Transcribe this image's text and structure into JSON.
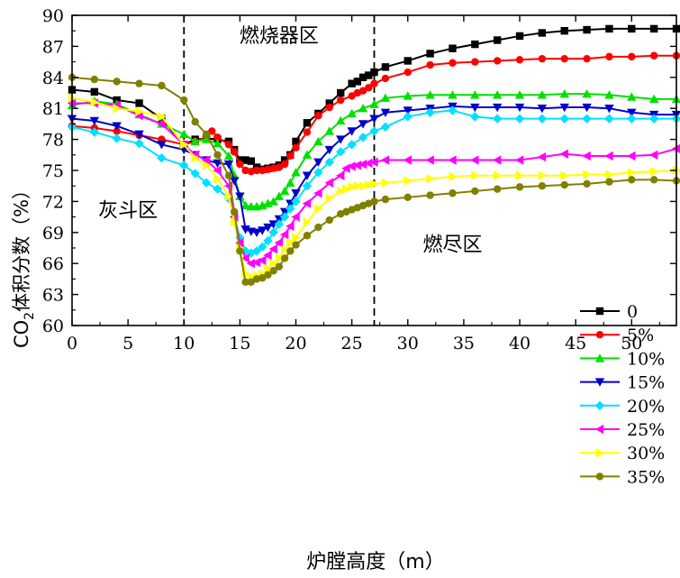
{
  "chart_data": {
    "type": "line",
    "ylabel_prefix": "CO",
    "ylabel_sub": "2",
    "ylabel_suffix": "体积分数（%）",
    "xlabel": "炉膛高度（m）",
    "xlim": [
      0,
      54
    ],
    "ylim": [
      60,
      90
    ],
    "xticks": [
      0,
      5,
      10,
      15,
      20,
      25,
      30,
      35,
      40,
      45,
      50
    ],
    "yticks": [
      60,
      63,
      66,
      69,
      72,
      75,
      78,
      81,
      84,
      87,
      90
    ],
    "dividers": [
      10,
      27
    ],
    "regions": [
      {
        "label": "灰斗区",
        "x": 5,
        "y": 70.5
      },
      {
        "label": "燃烧器区",
        "x": 18.5,
        "y": 87.4
      },
      {
        "label": "燃尽区",
        "x": 34,
        "y": 67.2
      }
    ],
    "legend_position": "right-middle",
    "series": [
      {
        "name": "0",
        "color": "#000000",
        "marker": "square",
        "x": [
          0,
          2,
          4,
          6,
          8,
          10,
          11,
          12,
          13,
          14,
          14.5,
          15,
          15.5,
          16,
          16.5,
          17,
          17.5,
          18,
          18.5,
          19,
          19.5,
          20,
          21,
          22,
          23,
          24,
          25,
          25.5,
          26,
          26.5,
          27,
          28,
          30,
          32,
          34,
          36,
          38,
          40,
          42,
          44,
          46,
          48,
          50,
          52,
          54
        ],
        "y": [
          82.8,
          82.6,
          81.8,
          81.5,
          80,
          77.5,
          78,
          78.1,
          78,
          77.8,
          77,
          76,
          76,
          75.9,
          75.3,
          75.1,
          75.2,
          75.3,
          75.5,
          76,
          76.5,
          77.8,
          79.6,
          80.5,
          81.5,
          82.5,
          83.4,
          83.6,
          84,
          84.2,
          84.5,
          85,
          85.6,
          86.3,
          86.8,
          87.2,
          87.6,
          88,
          88.3,
          88.5,
          88.6,
          88.7,
          88.7,
          88.7,
          88.7
        ]
      },
      {
        "name": "5%",
        "color": "#ff0000",
        "marker": "circle",
        "x": [
          0,
          2,
          4,
          6,
          8,
          10,
          11,
          12,
          12.5,
          13,
          14,
          14.5,
          15,
          15.5,
          16,
          16.5,
          17,
          17.5,
          18,
          18.5,
          19,
          19.5,
          20,
          21,
          22,
          23,
          24,
          25,
          25.5,
          26,
          26.5,
          27,
          28,
          30,
          32,
          34,
          36,
          38,
          40,
          42,
          44,
          46,
          48,
          50,
          52,
          54
        ],
        "y": [
          79.3,
          79.1,
          78.8,
          78.4,
          78,
          77.5,
          77.8,
          78.2,
          78.8,
          78.2,
          77.5,
          76.8,
          75.6,
          75,
          74.9,
          75,
          75,
          75.1,
          75.2,
          75.3,
          75.6,
          76.4,
          77.2,
          78.7,
          80.3,
          81.1,
          81.8,
          82.2,
          82.5,
          82.7,
          83,
          83.4,
          83.9,
          84.5,
          85.2,
          85.4,
          85.5,
          85.6,
          85.7,
          85.8,
          85.8,
          85.8,
          86,
          86,
          86.1,
          86.1
        ]
      },
      {
        "name": "10%",
        "color": "#00e000",
        "marker": "triangle-up",
        "x": [
          0,
          2,
          4,
          6,
          8,
          10,
          11,
          12,
          13,
          14,
          14.5,
          15,
          15.5,
          16,
          16.5,
          17,
          17.5,
          18,
          18.5,
          19,
          19.5,
          20,
          21,
          22,
          23,
          24,
          25,
          26,
          27,
          28,
          30,
          32,
          34,
          36,
          38,
          40,
          42,
          44,
          46,
          48,
          50,
          52,
          54
        ],
        "y": [
          81.3,
          81.7,
          81.4,
          80.4,
          79.5,
          78.5,
          77.8,
          78,
          77.6,
          76.4,
          74.5,
          72.5,
          71.6,
          71.5,
          71.5,
          71.6,
          71.8,
          72,
          72.5,
          73,
          73.8,
          74.8,
          76.5,
          77.8,
          78.8,
          79.8,
          80.5,
          81,
          81.4,
          82,
          82.2,
          82.3,
          82.3,
          82.3,
          82.3,
          82.3,
          82.3,
          82.4,
          82.4,
          82.3,
          82.1,
          81.9,
          81.9
        ]
      },
      {
        "name": "15%",
        "color": "#0000cc",
        "marker": "triangle-down",
        "x": [
          0,
          2,
          4,
          6,
          8,
          10,
          11,
          12,
          13,
          14,
          14.5,
          15,
          15.5,
          16,
          16.5,
          17,
          17.5,
          18,
          18.5,
          19,
          19.5,
          20,
          21,
          22,
          23,
          24,
          25,
          26,
          27,
          28,
          30,
          32,
          34,
          36,
          38,
          40,
          42,
          44,
          46,
          48,
          50,
          52,
          54
        ],
        "y": [
          80,
          79.8,
          79.3,
          78.5,
          77.5,
          77,
          76.5,
          76,
          75.7,
          75.6,
          74,
          72.5,
          69.3,
          69.1,
          69,
          69.2,
          69.5,
          69.8,
          70.3,
          71,
          71.8,
          72.8,
          74.5,
          75.8,
          77,
          78,
          78.8,
          79.5,
          80,
          80.6,
          80.8,
          81,
          81.2,
          81.1,
          81.1,
          81.1,
          81,
          81.1,
          81.1,
          81,
          80.6,
          80.4,
          80.4
        ]
      },
      {
        "name": "20%",
        "color": "#00e0ff",
        "marker": "diamond",
        "x": [
          0,
          2,
          4,
          6,
          8,
          10,
          11,
          12,
          13,
          14,
          14.5,
          15,
          15.5,
          16,
          16.5,
          17,
          17.5,
          18,
          18.5,
          19,
          19.5,
          20,
          21,
          22,
          23,
          24,
          25,
          26,
          27,
          28,
          30,
          32,
          34,
          36,
          38,
          40,
          42,
          44,
          46,
          48,
          50,
          52,
          54
        ],
        "y": [
          79.2,
          78.7,
          78.1,
          77.6,
          76.2,
          75.5,
          74.7,
          73.8,
          73.2,
          72.3,
          70.5,
          68.5,
          67.2,
          67,
          67.2,
          67.6,
          68.2,
          69,
          69.8,
          70.5,
          71.3,
          72,
          73.5,
          74.8,
          75.8,
          76.8,
          77.5,
          78.2,
          78.8,
          79.2,
          80.2,
          80.6,
          80.8,
          80.2,
          80,
          80,
          80,
          80,
          80,
          80,
          80,
          80,
          80
        ]
      },
      {
        "name": "25%",
        "color": "#ff00ff",
        "marker": "triangle-left",
        "x": [
          0,
          2,
          4,
          6,
          8,
          10,
          11,
          12,
          13,
          14,
          14.5,
          15,
          15.5,
          16,
          16.5,
          17,
          17.5,
          18,
          18.5,
          19,
          19.5,
          20,
          21,
          22,
          23,
          24,
          24.5,
          25,
          25.5,
          26,
          26.5,
          27,
          28,
          30,
          32,
          34,
          36,
          38,
          40,
          42,
          44,
          46,
          48,
          50,
          52,
          54
        ],
        "y": [
          81.5,
          81.5,
          81.3,
          80.3,
          79.5,
          77.5,
          76.5,
          76,
          75,
          73.5,
          70.5,
          68,
          66.5,
          66,
          66.1,
          66.3,
          66.8,
          67.4,
          68,
          68.8,
          69.6,
          70.5,
          71.8,
          72.8,
          73.8,
          74.5,
          75.2,
          75.4,
          75.5,
          75.6,
          75.7,
          75.8,
          76,
          76,
          76,
          76,
          76,
          76,
          76,
          76.3,
          76.6,
          76.4,
          76.4,
          76.4,
          76.5,
          77.1
        ]
      },
      {
        "name": "30%",
        "color": "#ffff00",
        "marker": "triangle-right",
        "x": [
          0,
          2,
          4,
          6,
          8,
          10,
          11,
          12,
          13,
          14,
          14.5,
          15,
          15.5,
          16,
          16.5,
          17,
          17.5,
          18,
          18.5,
          19,
          19.5,
          20,
          21,
          22,
          23,
          24,
          24.5,
          25,
          25.5,
          26,
          26.5,
          27,
          28,
          30,
          32,
          34,
          36,
          38,
          40,
          42,
          44,
          46,
          48,
          50,
          52,
          54
        ],
        "y": [
          82,
          81.6,
          81,
          80.7,
          80.2,
          77.5,
          76.2,
          75.5,
          74.2,
          72.5,
          70,
          67.5,
          65,
          64.7,
          64.8,
          65,
          65.5,
          66,
          66.5,
          67.3,
          68,
          68.5,
          70,
          71.3,
          72.3,
          73,
          73.2,
          73.4,
          73.5,
          73.5,
          73.6,
          73.7,
          73.8,
          74,
          74.2,
          74.4,
          74.5,
          74.5,
          74.5,
          74.5,
          74.5,
          74.6,
          74.6,
          74.8,
          74.9,
          75
        ]
      },
      {
        "name": "35%",
        "color": "#808000",
        "marker": "circle",
        "x": [
          0,
          2,
          4,
          6,
          8,
          10,
          11,
          12,
          13,
          14,
          14.5,
          15,
          15.5,
          16,
          16.5,
          17,
          17.5,
          18,
          18.5,
          19,
          19.5,
          20,
          21,
          22,
          23,
          24,
          24.5,
          25,
          25.5,
          26,
          26.5,
          27,
          28,
          30,
          32,
          34,
          36,
          38,
          40,
          42,
          44,
          46,
          48,
          50,
          52,
          54
        ],
        "y": [
          84,
          83.8,
          83.6,
          83.4,
          83.2,
          81.8,
          79.7,
          78.5,
          76.5,
          74.5,
          71,
          67.2,
          64.2,
          64.2,
          64.5,
          64.6,
          64.9,
          65.3,
          65.7,
          66.5,
          67.2,
          67.8,
          68.7,
          69.5,
          70.2,
          70.8,
          71,
          71.2,
          71.4,
          71.6,
          71.8,
          72,
          72.2,
          72.4,
          72.6,
          72.8,
          73,
          73.2,
          73.4,
          73.5,
          73.6,
          73.7,
          73.9,
          74.1,
          74.1,
          74
        ]
      }
    ]
  }
}
